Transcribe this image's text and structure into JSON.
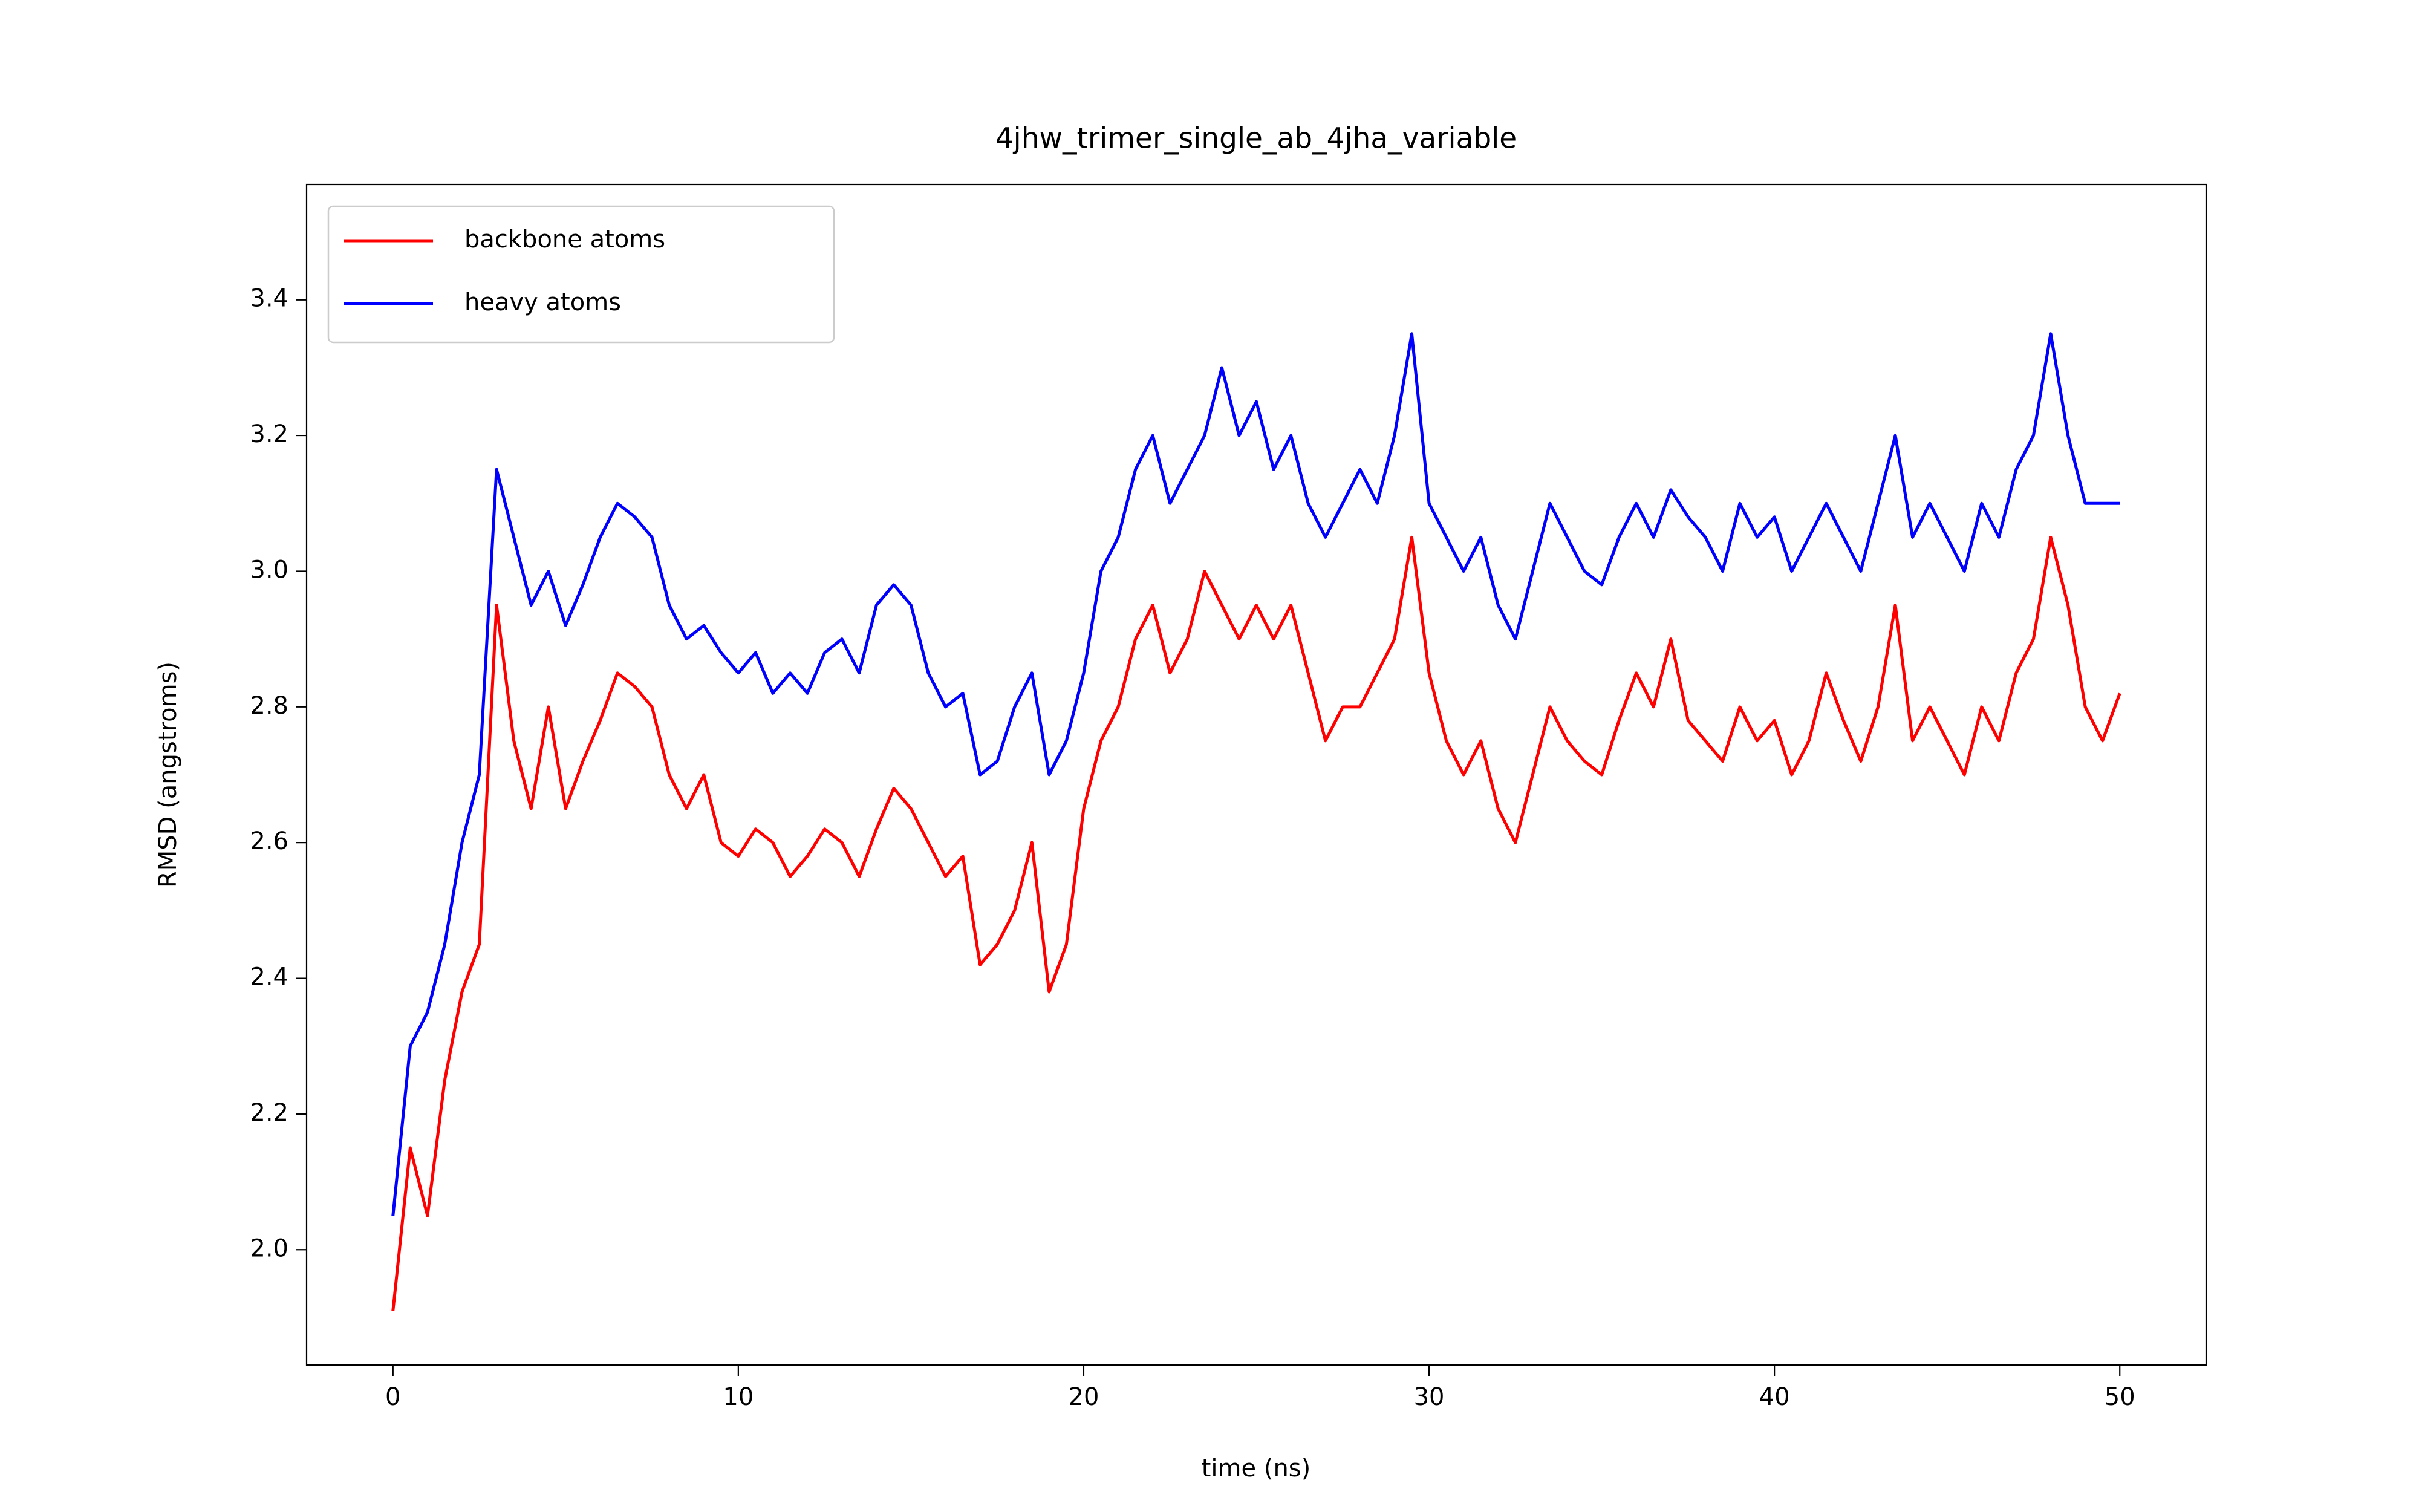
{
  "chart_data": {
    "type": "line",
    "title": "4jhw_trimer_single_ab_4jha_variable",
    "x_label": "time (ns)",
    "y_label": "RMSD (angstroms)",
    "legend": "upper left",
    "grid": false,
    "xlim": [
      -2.5,
      52.5
    ],
    "ylim": [
      1.83,
      3.57
    ],
    "xticks": [
      0,
      10,
      20,
      30,
      40,
      50
    ],
    "yticks": [
      {
        "value": 2.0,
        "label": "2.0"
      },
      {
        "value": 2.2,
        "label": "2.2"
      },
      {
        "value": 2.4,
        "label": "2.4"
      },
      {
        "value": 2.6,
        "label": "2.6"
      },
      {
        "value": 2.8,
        "label": "2.8"
      },
      {
        "value": 3.0,
        "label": "3.0"
      },
      {
        "value": 3.2,
        "label": "3.2"
      },
      {
        "value": 3.4,
        "label": "3.4"
      }
    ],
    "x": [
      0,
      0.5,
      1,
      1.5,
      2,
      2.5,
      3,
      3.5,
      4,
      4.5,
      5,
      5.5,
      6,
      6.5,
      7,
      7.5,
      8,
      8.5,
      9,
      9.5,
      10,
      10.5,
      11,
      11.5,
      12,
      12.5,
      13,
      13.5,
      14,
      14.5,
      15,
      15.5,
      16,
      16.5,
      17,
      17.5,
      18,
      18.5,
      19,
      19.5,
      20,
      20.5,
      21,
      21.5,
      22,
      22.5,
      23,
      23.5,
      24,
      24.5,
      25,
      25.5,
      26,
      26.5,
      27,
      27.5,
      28,
      28.5,
      29,
      29.5,
      30,
      30.5,
      31,
      31.5,
      32,
      32.5,
      33,
      33.5,
      34,
      34.5,
      35,
      35.5,
      36,
      36.5,
      37,
      37.5,
      38,
      38.5,
      39,
      39.5,
      40,
      40.5,
      41,
      41.5,
      42,
      42.5,
      43,
      43.5,
      44,
      44.5,
      45,
      45.5,
      46,
      46.5,
      47,
      47.5,
      48,
      48.5,
      49,
      49.5,
      50
    ],
    "series": [
      {
        "name": "backbone atoms",
        "color": "#ff0000",
        "values": [
          1.91,
          2.15,
          2.05,
          2.25,
          2.38,
          2.45,
          2.95,
          2.75,
          2.65,
          2.8,
          2.65,
          2.72,
          2.78,
          2.85,
          2.83,
          2.8,
          2.7,
          2.65,
          2.7,
          2.6,
          2.58,
          2.62,
          2.6,
          2.55,
          2.58,
          2.62,
          2.6,
          2.55,
          2.62,
          2.68,
          2.65,
          2.6,
          2.55,
          2.58,
          2.42,
          2.45,
          2.5,
          2.6,
          2.38,
          2.45,
          2.65,
          2.75,
          2.8,
          2.9,
          2.95,
          2.85,
          2.9,
          3.0,
          2.95,
          2.9,
          2.95,
          2.9,
          2.95,
          2.85,
          2.75,
          2.8,
          2.8,
          2.85,
          2.9,
          3.05,
          2.85,
          2.75,
          2.7,
          2.75,
          2.65,
          2.6,
          2.7,
          2.8,
          2.75,
          2.72,
          2.7,
          2.78,
          2.85,
          2.8,
          2.9,
          2.78,
          2.75,
          2.72,
          2.8,
          2.75,
          2.78,
          2.7,
          2.75,
          2.85,
          2.78,
          2.72,
          2.8,
          2.95,
          2.75,
          2.8,
          2.75,
          2.7,
          2.8,
          2.75,
          2.85,
          2.9,
          3.05,
          2.95,
          2.8,
          2.75,
          2.82
        ]
      },
      {
        "name": "heavy atoms",
        "color": "#0000ff",
        "values": [
          2.05,
          2.3,
          2.35,
          2.45,
          2.6,
          2.7,
          3.15,
          3.05,
          2.95,
          3.0,
          2.92,
          2.98,
          3.05,
          3.1,
          3.08,
          3.05,
          2.95,
          2.9,
          2.92,
          2.88,
          2.85,
          2.88,
          2.82,
          2.85,
          2.82,
          2.88,
          2.9,
          2.85,
          2.95,
          2.98,
          2.95,
          2.85,
          2.8,
          2.82,
          2.7,
          2.72,
          2.8,
          2.85,
          2.7,
          2.75,
          2.85,
          3.0,
          3.05,
          3.15,
          3.2,
          3.1,
          3.15,
          3.2,
          3.3,
          3.2,
          3.25,
          3.15,
          3.2,
          3.1,
          3.05,
          3.1,
          3.15,
          3.1,
          3.2,
          3.35,
          3.1,
          3.05,
          3.0,
          3.05,
          2.95,
          2.9,
          3.0,
          3.1,
          3.05,
          3.0,
          2.98,
          3.05,
          3.1,
          3.05,
          3.12,
          3.08,
          3.05,
          3.0,
          3.1,
          3.05,
          3.08,
          3.0,
          3.05,
          3.1,
          3.05,
          3.0,
          3.1,
          3.2,
          3.05,
          3.1,
          3.05,
          3.0,
          3.1,
          3.05,
          3.15,
          3.2,
          3.35,
          3.2,
          3.1,
          3.1,
          3.1
        ]
      }
    ]
  }
}
